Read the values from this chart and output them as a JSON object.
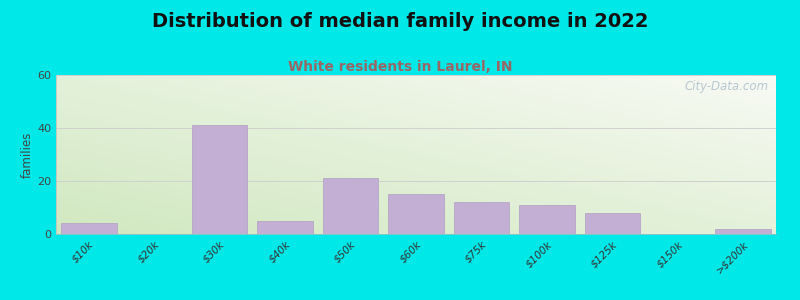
{
  "title": "Distribution of median family income in 2022",
  "subtitle": "White residents in Laurel, IN",
  "categories": [
    "$10k",
    "$20k",
    "$30k",
    "$40k",
    "$50k",
    "$60k",
    "$75k",
    "$100k",
    "$125k",
    "$150k",
    ">$200k"
  ],
  "values": [
    4,
    0,
    41,
    5,
    21,
    15,
    12,
    11,
    8,
    0,
    2
  ],
  "bar_color": "#c4afd4",
  "bar_edge_color": "#b09ec4",
  "ylim": [
    0,
    60
  ],
  "yticks": [
    0,
    20,
    40,
    60
  ],
  "ylabel": "families",
  "title_fontsize": 14,
  "subtitle_fontsize": 10,
  "subtitle_color": "#996666",
  "background_outer": "#00e8e8",
  "watermark": "City-Data.com",
  "grad_left": "#d0e8c0",
  "grad_right": "#f8faf4"
}
